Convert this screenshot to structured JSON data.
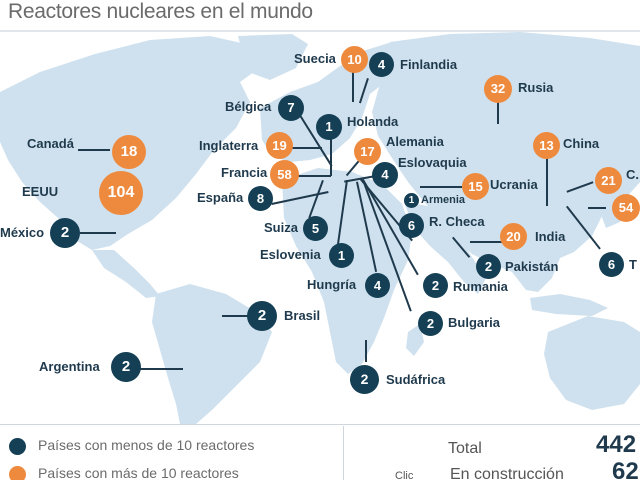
{
  "title": "Reactores nucleares en el mundo",
  "countries": [
    {
      "name": "Canadá",
      "count": "18",
      "type": "org"
    },
    {
      "name": "EEUU",
      "count": "104",
      "type": "org"
    },
    {
      "name": "México",
      "count": "2",
      "type": "dark"
    },
    {
      "name": "Brasil",
      "count": "2",
      "type": "dark"
    },
    {
      "name": "Argentina",
      "count": "2",
      "type": "dark"
    },
    {
      "name": "Suecia",
      "count": "10",
      "type": "org"
    },
    {
      "name": "Finlandia",
      "count": "4",
      "type": "dark"
    },
    {
      "name": "Bélgica",
      "count": "7",
      "type": "dark"
    },
    {
      "name": "Holanda",
      "count": "1",
      "type": "dark"
    },
    {
      "name": "Inglaterra",
      "count": "19",
      "type": "org"
    },
    {
      "name": "Alemania",
      "count": "17",
      "type": "org"
    },
    {
      "name": "Francia",
      "count": "58",
      "type": "org"
    },
    {
      "name": "Eslovaquia",
      "count": "4",
      "type": "dark"
    },
    {
      "name": "España",
      "count": "8",
      "type": "dark"
    },
    {
      "name": "Armenia",
      "count": "1",
      "type": "dark"
    },
    {
      "name": "Ucrania",
      "count": "15",
      "type": "org"
    },
    {
      "name": "Suiza",
      "count": "5",
      "type": "dark"
    },
    {
      "name": "R. Checa",
      "count": "6",
      "type": "dark"
    },
    {
      "name": "Eslovenia",
      "count": "1",
      "type": "dark"
    },
    {
      "name": "Hungría",
      "count": "4",
      "type": "dark"
    },
    {
      "name": "Rumania",
      "count": "2",
      "type": "dark"
    },
    {
      "name": "Bulgaria",
      "count": "2",
      "type": "dark"
    },
    {
      "name": "Sudáfrica",
      "count": "2",
      "type": "dark"
    },
    {
      "name": "Rusia",
      "count": "32",
      "type": "org"
    },
    {
      "name": "China",
      "count": "13",
      "type": "org"
    },
    {
      "name": "C.",
      "count": "21",
      "type": "org"
    },
    {
      "name": "",
      "count": "54",
      "type": "org"
    },
    {
      "name": "India",
      "count": "20",
      "type": "org"
    },
    {
      "name": "Pakistán",
      "count": "2",
      "type": "dark"
    },
    {
      "name": "T",
      "count": "6",
      "type": "dark"
    }
  ],
  "legend": {
    "dark_label": "Países con menos de 10 reactores",
    "orange_label": "Países con más de 10 reactores",
    "dark_color": "#143f55",
    "orange_color": "#ee8a3e"
  },
  "totals": {
    "total_label": "Total",
    "total_value": "442",
    "construction_label": "En construcción",
    "construction_value": "62",
    "clic_label": "Clic"
  }
}
